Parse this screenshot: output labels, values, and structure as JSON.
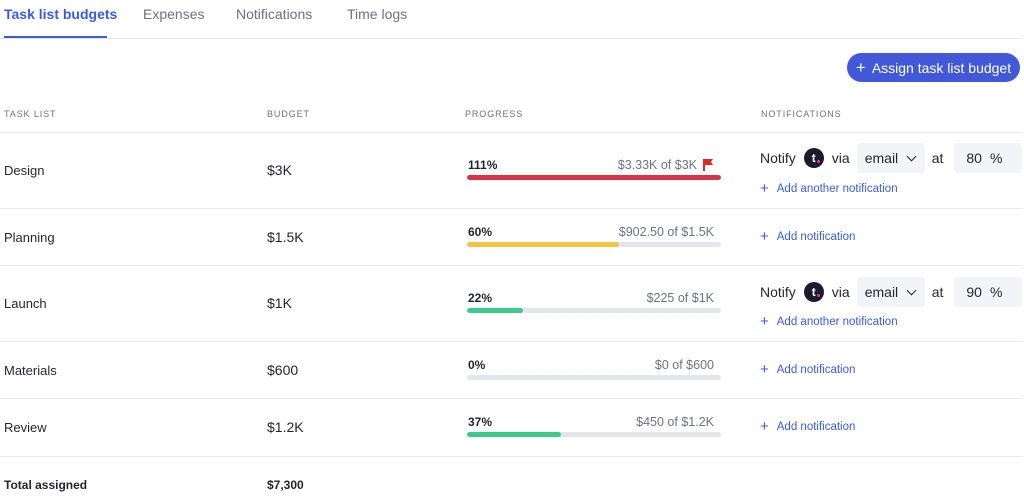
{
  "tabs": [
    {
      "label": "Task list budgets",
      "active": true
    },
    {
      "label": "Expenses",
      "active": false
    },
    {
      "label": "Notifications",
      "active": false
    },
    {
      "label": "Time logs",
      "active": false
    }
  ],
  "assign_button": {
    "label": "Assign task list budget"
  },
  "table": {
    "headers": {
      "task_list": "TASK LIST",
      "budget": "BUDGET",
      "progress": "PROGRESS",
      "notifications": "NOTIFICATIONS"
    },
    "rows": [
      {
        "name": "Design",
        "budget": "$3K",
        "progress": {
          "percent_label": "111%",
          "amount": "$3.33K of $3K",
          "value": 1.11,
          "color": "#d63447",
          "flag": true
        },
        "notification": {
          "notify": "Notify",
          "via": "via",
          "channel": "email",
          "at": "at",
          "threshold": "80",
          "unit": "%",
          "link": "Add another notification"
        }
      },
      {
        "name": "Planning",
        "budget": "$1.5K",
        "progress": {
          "percent_label": "60%",
          "amount": "$902.50 of $1.5K",
          "value": 0.6,
          "color": "#f6c244",
          "flag": false
        },
        "notification": {
          "link": "Add notification"
        }
      },
      {
        "name": "Launch",
        "budget": "$1K",
        "progress": {
          "percent_label": "22%",
          "amount": "$225 of $1K",
          "value": 0.22,
          "color": "#3ec98b",
          "flag": false
        },
        "notification": {
          "notify": "Notify",
          "via": "via",
          "channel": "email",
          "at": "at",
          "threshold": "90",
          "unit": "%",
          "link": "Add another notification"
        }
      },
      {
        "name": "Materials",
        "budget": "$600",
        "progress": {
          "percent_label": "0%",
          "amount": "$0 of $600",
          "value": 0.0,
          "color": "#3ec98b",
          "flag": false
        },
        "notification": {
          "link": "Add notification"
        }
      },
      {
        "name": "Review",
        "budget": "$1.2K",
        "progress": {
          "percent_label": "37%",
          "amount": "$450 of $1.2K",
          "value": 0.37,
          "color": "#3ec98b",
          "flag": false
        },
        "notification": {
          "link": "Add notification"
        }
      }
    ],
    "total": {
      "label": "Total assigned",
      "value": "$7,300"
    }
  },
  "icons": {
    "add": "plus-icon",
    "flag": "flag-icon",
    "dropdown": "chevron-down-icon",
    "avatar": "teamwork-avatar-icon"
  },
  "colors": {
    "accent": "#4158d8",
    "over_budget": "#d63447",
    "warning": "#f6c244",
    "ok": "#3ec98b"
  }
}
